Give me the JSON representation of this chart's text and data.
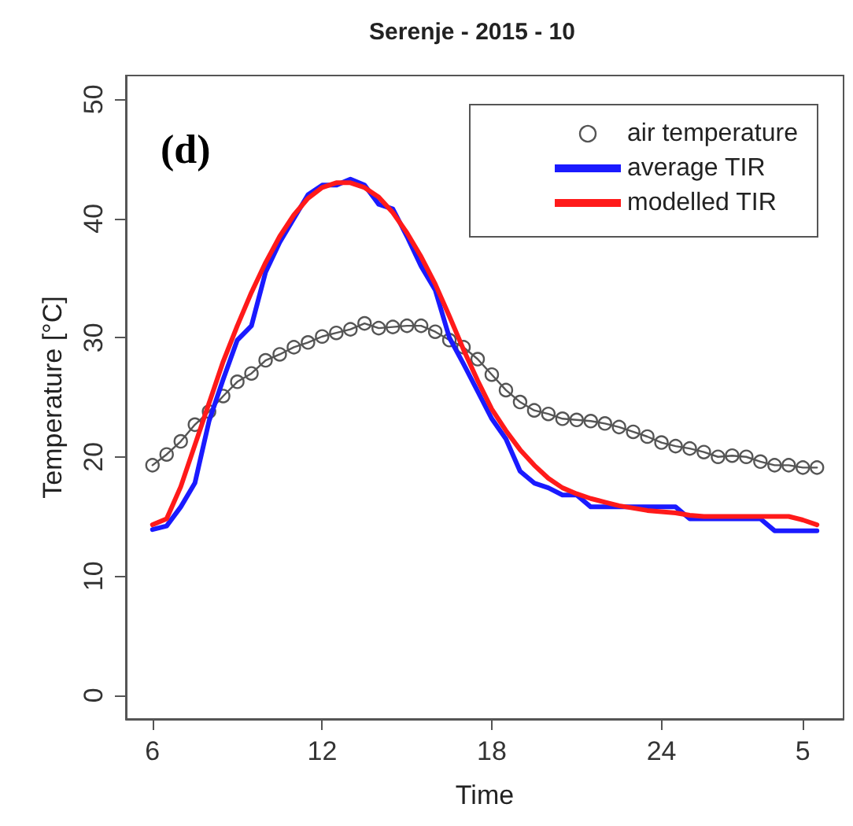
{
  "chart_data": {
    "type": "line",
    "title": "Serenje - 2015 - 10",
    "xlabel": "Time",
    "ylabel": "Temperature [°C]",
    "annotations": [
      "(d)"
    ],
    "categories": [
      "6",
      null,
      null,
      null,
      null,
      null,
      null,
      null,
      null,
      null,
      null,
      null,
      "12",
      null,
      null,
      null,
      null,
      null,
      null,
      null,
      null,
      null,
      null,
      null,
      "18",
      null,
      null,
      null,
      null,
      null,
      null,
      null,
      null,
      null,
      null,
      null,
      "24",
      null,
      null,
      null,
      null,
      null,
      null,
      null,
      null,
      null,
      "5",
      null
    ],
    "series": [
      {
        "name": "air temperature",
        "color": "#555555",
        "marker": "circle",
        "values": [
          19.3,
          20.2,
          21.3,
          22.7,
          23.8,
          25.1,
          26.3,
          27.0,
          28.1,
          28.6,
          29.2,
          29.6,
          30.1,
          30.4,
          30.7,
          31.2,
          30.8,
          30.9,
          31.0,
          31.0,
          30.5,
          29.8,
          29.2,
          28.2,
          26.9,
          25.6,
          24.6,
          23.9,
          23.6,
          23.2,
          23.1,
          23.0,
          22.8,
          22.5,
          22.1,
          21.7,
          21.2,
          20.9,
          20.7,
          20.4,
          20.0,
          20.1,
          20.0,
          19.6,
          19.3,
          19.3,
          19.1,
          19.1
        ]
      },
      {
        "name": "average TIR",
        "color": "#1a1aff",
        "marker": "none",
        "values": [
          13.9,
          14.2,
          15.8,
          17.8,
          23.0,
          26.5,
          29.8,
          31.0,
          35.5,
          38.0,
          40.0,
          42.0,
          42.8,
          42.8,
          43.3,
          42.8,
          41.2,
          40.8,
          38.5,
          36.0,
          34.0,
          30.0,
          27.8,
          25.5,
          23.2,
          21.5,
          18.8,
          17.8,
          17.4,
          16.8,
          16.8,
          15.8,
          15.8,
          15.8,
          15.8,
          15.8,
          15.8,
          15.8,
          14.8,
          14.8,
          14.8,
          14.8,
          14.8,
          14.8,
          13.8,
          13.8,
          13.8,
          13.8
        ]
      },
      {
        "name": "modelled TIR",
        "color": "#ff1a1a",
        "marker": "none",
        "values": [
          14.3,
          14.8,
          17.5,
          21.0,
          24.5,
          28.0,
          31.0,
          33.8,
          36.3,
          38.5,
          40.3,
          41.7,
          42.6,
          43.0,
          43.0,
          42.6,
          41.8,
          40.5,
          38.8,
          36.8,
          34.5,
          31.8,
          29.0,
          26.4,
          24.0,
          22.2,
          20.6,
          19.3,
          18.2,
          17.4,
          16.9,
          16.5,
          16.2,
          15.9,
          15.7,
          15.5,
          15.4,
          15.3,
          15.1,
          15.0,
          15.0,
          15.0,
          15.0,
          15.0,
          15.0,
          15.0,
          14.7,
          14.3
        ]
      }
    ],
    "ylim": [
      -2,
      52
    ],
    "yticks": [
      0,
      10,
      20,
      30,
      40,
      50
    ],
    "grid": false,
    "legend": "top right",
    "line_style": "solid"
  }
}
